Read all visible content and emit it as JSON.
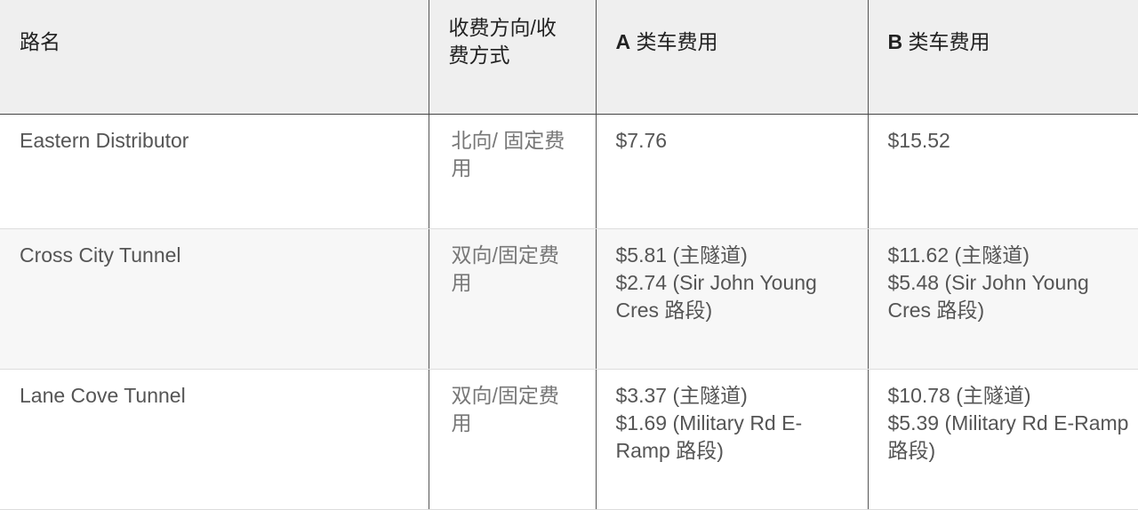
{
  "headers": {
    "road": "路名",
    "direction": "收费方向/收费方式",
    "a_prefix": "A",
    "a_label": " 类车费用",
    "b_prefix": "B",
    "b_label": " 类车费用"
  },
  "rows": [
    {
      "road": "Eastern Distributor",
      "direction": "北向/ 固定费用",
      "a": [
        "$7.76"
      ],
      "b": [
        "$15.52"
      ]
    },
    {
      "road": "Cross City Tunnel",
      "direction": "双向/固定费用",
      "a": [
        "$5.81 (主隧道)",
        "$2.74 (Sir John Young Cres 路段)"
      ],
      "b": [
        "$11.62 (主隧道)",
        "$5.48 (Sir John Young Cres 路段)"
      ]
    },
    {
      "road": "Lane Cove Tunnel",
      "direction": "双向/固定费用",
      "a": [
        "$3.37 (主隧道)",
        "$1.69 (Military Rd E-Ramp 路段)"
      ],
      "b": [
        "$10.78 (主隧道)",
        "$5.39 (Military Rd E-Ramp 路段)"
      ]
    }
  ]
}
